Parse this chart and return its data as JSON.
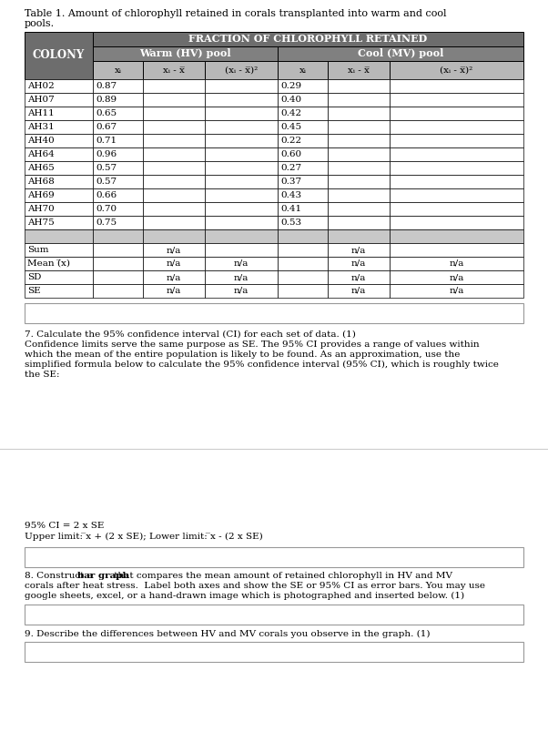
{
  "title_line1": "Table 1. Amount of chlorophyll retained in corals transplanted into warm and cool",
  "title_line2": "pools.",
  "header_row1": "FRACTION OF CHLOROPHYLL RETAINED",
  "header_row2_warm": "Warm (HV) pool",
  "header_row2_cool": "Cool (MV) pool",
  "colonies": [
    "AH02",
    "AH07",
    "AH11",
    "AH31",
    "AH40",
    "AH64",
    "AH65",
    "AH68",
    "AH69",
    "AH70",
    "AH75"
  ],
  "warm_xi": [
    0.87,
    0.89,
    0.65,
    0.67,
    0.71,
    0.96,
    0.57,
    0.57,
    0.66,
    0.7,
    0.75
  ],
  "cool_xi": [
    0.29,
    0.4,
    0.42,
    0.45,
    0.22,
    0.6,
    0.27,
    0.37,
    0.43,
    0.41,
    0.53
  ],
  "summary_rows": [
    "Sum",
    "Mean (x)",
    "SD",
    "SE"
  ],
  "summary_warm_col2": [
    "n/a",
    "n/a",
    "n/a",
    "n/a"
  ],
  "summary_warm_col3": [
    "",
    "n/a",
    "n/a",
    "n/a"
  ],
  "summary_cool_col2": [
    "n/a",
    "n/a",
    "n/a",
    "n/a"
  ],
  "summary_cool_col3": [
    "",
    "n/a",
    "n/a",
    "n/a"
  ],
  "q7_line1_normal": "7. Calculate the 95% confidence interval (CI) for each set of data. ",
  "q7_line1_bold": "(1)",
  "q7_body": "Confidence limits serve the same purpose as SE. The 95% CI provides a range of values within\nwhich the mean of the entire population is likely to be found. As an approximation, use the\nsimplified formula below to calculate the 95% confidence interval (95% CI), which is roughly twice\nthe SE:",
  "ci_formula": "95% CI = 2 x SE",
  "ci_limits": "Upper limit: x + (2 x SE); Lower limit: x - (2 x SE)",
  "q8_pre": "8. Construct a ",
  "q8_bold": "bar graph",
  "q8_post": " that compares the mean amount of retained chlorophyll in HV and MV\ncorals after heat stress.  Label both axes and show the SE or 95% CI as error bars. You may use\ngoogle sheets, excel, or a hand-drawn image which is photographed and inserted below. (1)",
  "q9": "9. Describe the differences between HV and MV corals you observe in the graph. (1)",
  "header_dark_gray": "#6d6d6d",
  "header_mid_gray": "#808080",
  "header_light_gray": "#b8b8b8",
  "sep_gray": "#c8c8c8",
  "white": "#ffffff",
  "black": "#000000"
}
